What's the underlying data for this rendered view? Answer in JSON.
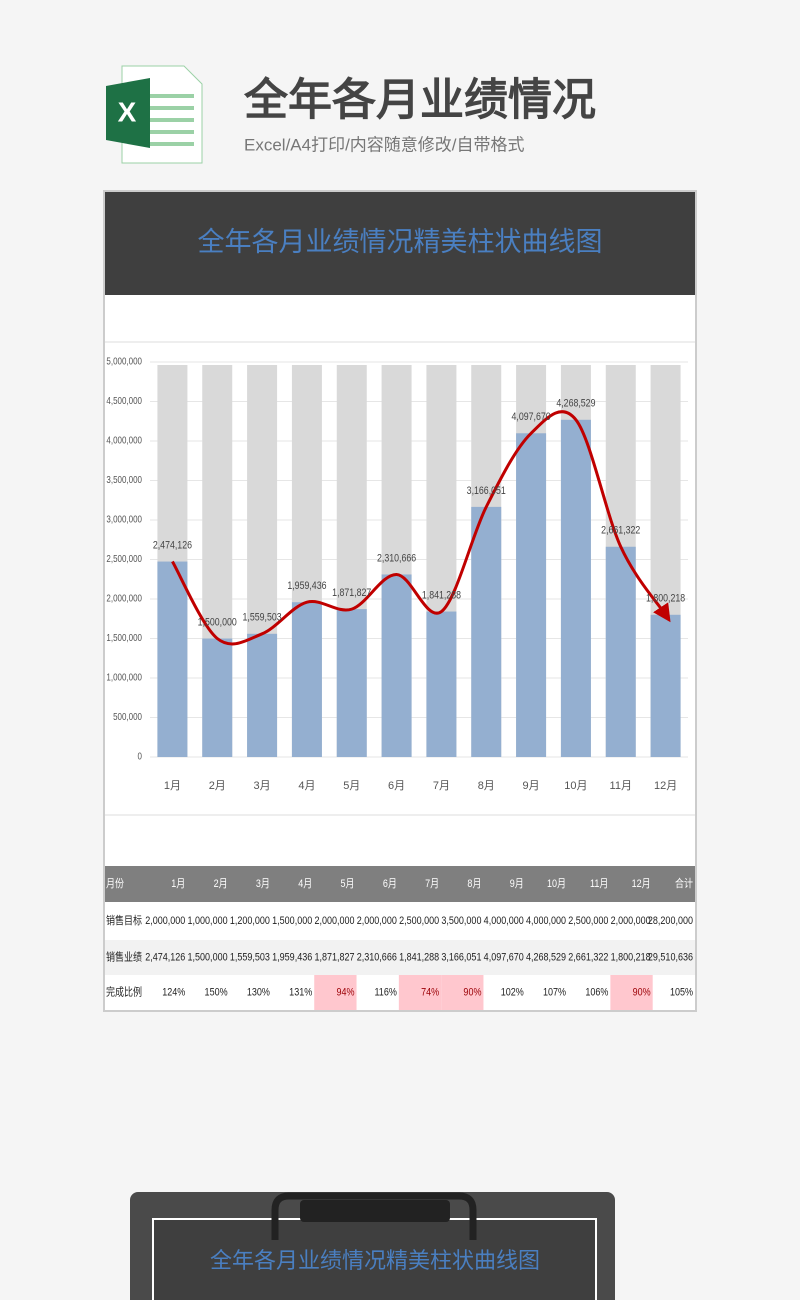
{
  "header": {
    "icon_letter": "X",
    "title": "全年各月业绩情况",
    "subtitle": "Excel/A4打印/内容随意修改/自带格式"
  },
  "chart_data": {
    "type": "bar",
    "title": "全年各月业绩情况精美柱状曲线图",
    "categories": [
      "1月",
      "2月",
      "3月",
      "4月",
      "5月",
      "6月",
      "7月",
      "8月",
      "9月",
      "10月",
      "11月",
      "12月"
    ],
    "values": [
      2474126,
      1500000,
      1559503,
      1959436,
      1871827,
      2310666,
      1841288,
      3166051,
      4097670,
      4268529,
      2661322,
      1800218
    ],
    "value_labels": [
      "2,474,126",
      "1,500,000",
      "1,559,503",
      "1,959,436",
      "1,871,827",
      "2,310,666",
      "1,841,288",
      "3,166,051",
      "4,097,670",
      "4,268,529",
      "2,661,322",
      "1,800,218"
    ],
    "color": "#94afd0",
    "line_color": "#c00000",
    "background_bar_color": "#d9d9d9",
    "ylim": [
      0,
      5000000
    ],
    "yticks": [
      0,
      {
        "value": 500000,
        "label": "500,000"
      },
      {
        "value": 1000000,
        "label": "1,000,000"
      },
      {
        "value": 1500000,
        "label": "1,500,000"
      },
      {
        "value": 2000000,
        "label": "2,000,000"
      },
      {
        "value": 2500000,
        "label": "2,500,000"
      },
      {
        "value": 3000000,
        "label": "3,000,000"
      },
      {
        "value": 3500000,
        "label": "3,500,000"
      },
      {
        "value": 4000000,
        "label": "4,000,000"
      },
      {
        "value": 4500000,
        "label": "4,500,000"
      },
      {
        "value": 5000000,
        "label": "5,000,000"
      }
    ],
    "grid": true
  },
  "table": {
    "header": [
      "月份",
      "1月",
      "2月",
      "3月",
      "4月",
      "5月",
      "6月",
      "7月",
      "8月",
      "9月",
      "10月",
      "11月",
      "12月",
      "合计"
    ],
    "rows": [
      [
        "销售目标",
        "2,000,000",
        "1,000,000",
        "1,200,000",
        "1,500,000",
        "2,000,000",
        "2,000,000",
        "2,500,000",
        "3,500,000",
        "4,000,000",
        "4,000,000",
        "2,500,000",
        "2,000,000",
        "28,200,000"
      ],
      [
        "销售业绩",
        "2,474,126",
        "1,500,000",
        "1,559,503",
        "1,959,436",
        "1,871,827",
        "2,310,666",
        "1,841,288",
        "3,166,051",
        "4,097,670",
        "4,268,529",
        "2,661,322",
        "1,800,218",
        "29,510,636"
      ],
      [
        "完成比例",
        "124%",
        "150%",
        "130%",
        "131%",
        "94%",
        "116%",
        "74%",
        "90%",
        "102%",
        "107%",
        "106%",
        "90%",
        "105%"
      ]
    ],
    "highlight_color": "#ffc7ce"
  },
  "preview": {
    "title": "全年各月业绩情况精美柱状曲线图"
  }
}
